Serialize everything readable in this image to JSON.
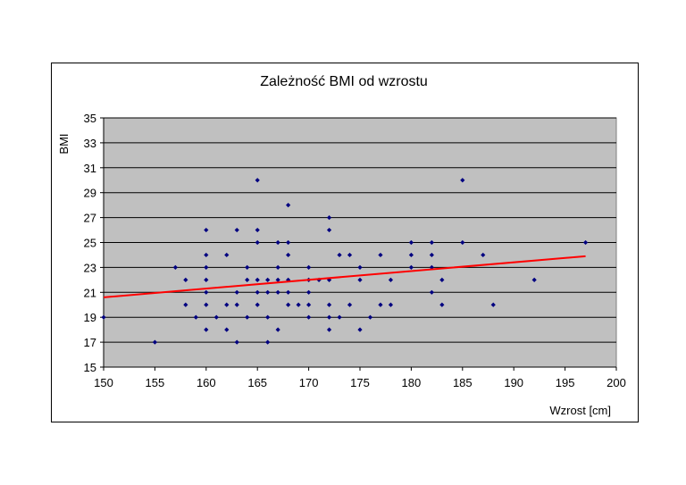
{
  "chart_data": {
    "type": "scatter",
    "title": "Zależność BMI od wzrostu",
    "xlabel": "Wzrost [cm]",
    "ylabel": "BMI",
    "xlim": [
      150,
      200
    ],
    "ylim": [
      15,
      35
    ],
    "xticks": [
      150,
      155,
      160,
      165,
      170,
      175,
      180,
      185,
      190,
      195,
      200
    ],
    "yticks": [
      15,
      17,
      19,
      21,
      23,
      25,
      27,
      29,
      31,
      33,
      35
    ],
    "grid": true,
    "legend": "none",
    "colors": {
      "plot_background": "#c0c0c0",
      "points": "#000080",
      "trendline": "#ff0000",
      "gridlines": "#000000"
    },
    "points": [
      [
        150,
        19
      ],
      [
        155,
        17
      ],
      [
        157,
        23
      ],
      [
        158,
        22
      ],
      [
        158,
        20
      ],
      [
        159,
        19
      ],
      [
        160,
        26
      ],
      [
        160,
        24
      ],
      [
        160,
        23
      ],
      [
        160,
        22
      ],
      [
        160,
        21
      ],
      [
        160,
        20
      ],
      [
        160,
        18
      ],
      [
        161,
        19
      ],
      [
        162,
        24
      ],
      [
        162,
        20
      ],
      [
        162,
        18
      ],
      [
        163,
        26
      ],
      [
        163,
        21
      ],
      [
        163,
        20
      ],
      [
        163,
        17
      ],
      [
        164,
        23
      ],
      [
        164,
        22
      ],
      [
        164,
        19
      ],
      [
        165,
        30
      ],
      [
        165,
        26
      ],
      [
        165,
        25
      ],
      [
        165,
        22
      ],
      [
        165,
        21
      ],
      [
        165,
        20
      ],
      [
        166,
        22
      ],
      [
        166,
        21
      ],
      [
        166,
        19
      ],
      [
        166,
        17
      ],
      [
        167,
        25
      ],
      [
        167,
        23
      ],
      [
        167,
        22
      ],
      [
        167,
        21
      ],
      [
        167,
        18
      ],
      [
        168,
        28
      ],
      [
        168,
        25
      ],
      [
        168,
        24
      ],
      [
        168,
        22
      ],
      [
        168,
        21
      ],
      [
        168,
        20
      ],
      [
        169,
        20
      ],
      [
        170,
        23
      ],
      [
        170,
        22
      ],
      [
        170,
        21
      ],
      [
        170,
        20
      ],
      [
        170,
        19
      ],
      [
        171,
        22
      ],
      [
        172,
        27
      ],
      [
        172,
        26
      ],
      [
        172,
        22
      ],
      [
        172,
        20
      ],
      [
        172,
        19
      ],
      [
        172,
        18
      ],
      [
        173,
        24
      ],
      [
        173,
        19
      ],
      [
        174,
        24
      ],
      [
        174,
        20
      ],
      [
        175,
        23
      ],
      [
        175,
        22
      ],
      [
        175,
        18
      ],
      [
        176,
        19
      ],
      [
        177,
        24
      ],
      [
        177,
        20
      ],
      [
        178,
        22
      ],
      [
        178,
        20
      ],
      [
        180,
        25
      ],
      [
        180,
        24
      ],
      [
        180,
        23
      ],
      [
        182,
        25
      ],
      [
        182,
        24
      ],
      [
        182,
        23
      ],
      [
        182,
        21
      ],
      [
        183,
        22
      ],
      [
        183,
        20
      ],
      [
        185,
        30
      ],
      [
        185,
        25
      ],
      [
        187,
        24
      ],
      [
        188,
        20
      ],
      [
        192,
        22
      ],
      [
        197,
        25
      ]
    ],
    "trendline": {
      "x": [
        150,
        197
      ],
      "y": [
        20.6,
        23.9
      ]
    }
  }
}
